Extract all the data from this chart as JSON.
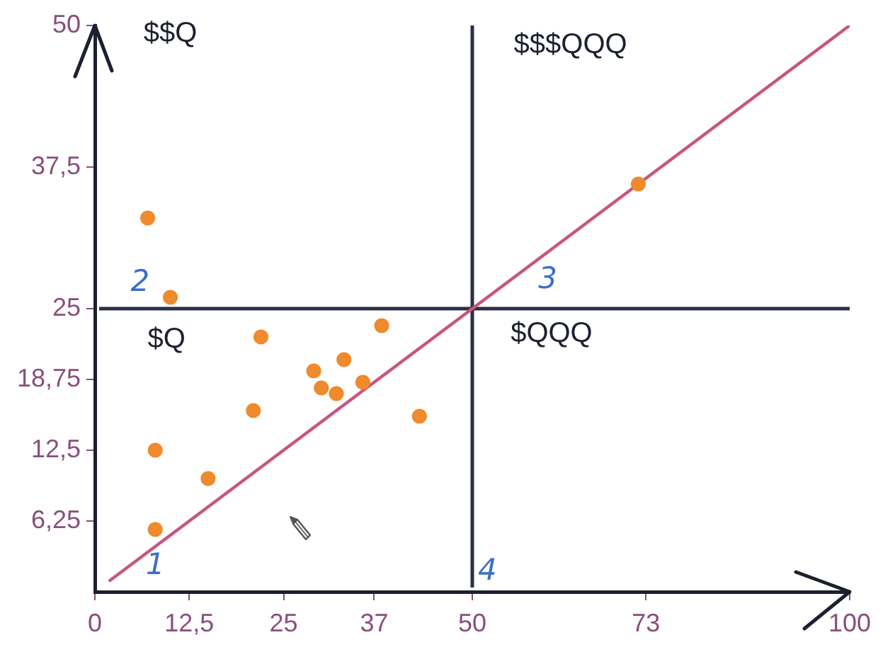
{
  "chart_data": {
    "type": "scatter",
    "xlim": [
      0,
      100
    ],
    "ylim": [
      0,
      50
    ],
    "xticks": [
      0,
      {
        "value": 12.5,
        "label": "12,5"
      },
      25,
      37,
      50,
      73,
      100
    ],
    "yticks": [
      {
        "value": 6.25,
        "label": "6,25"
      },
      {
        "value": 12.5,
        "label": "12,5"
      },
      {
        "value": 18.75,
        "label": "18,75"
      },
      25,
      {
        "value": 37.5,
        "label": "37,5"
      },
      50
    ],
    "marker": "circle",
    "series": [
      {
        "type": "scatter",
        "color": "#ef8a2d",
        "x": [
          7,
          10,
          22,
          38,
          33,
          29,
          30,
          32,
          35.5,
          21,
          43,
          8,
          15,
          8,
          72
        ],
        "values": [
          33,
          26,
          22.5,
          23.5,
          20.5,
          19.5,
          18,
          17.5,
          18.5,
          16,
          15.5,
          12.5,
          10,
          5.5,
          36
        ]
      },
      {
        "type": "line",
        "color": "#c9557f",
        "marker": "none",
        "x": [
          2,
          100
        ],
        "values": [
          1,
          50
        ]
      }
    ],
    "ref_lines": [
      {
        "axis": "x",
        "value": 50,
        "color": "#2a2f45"
      },
      {
        "axis": "y",
        "value": 25,
        "color": "#2a2f45"
      }
    ],
    "annotations": [
      "$$Q",
      "$$$QQQ",
      "$Q",
      "$QQQ",
      "1",
      "2",
      "3",
      "4"
    ]
  }
}
